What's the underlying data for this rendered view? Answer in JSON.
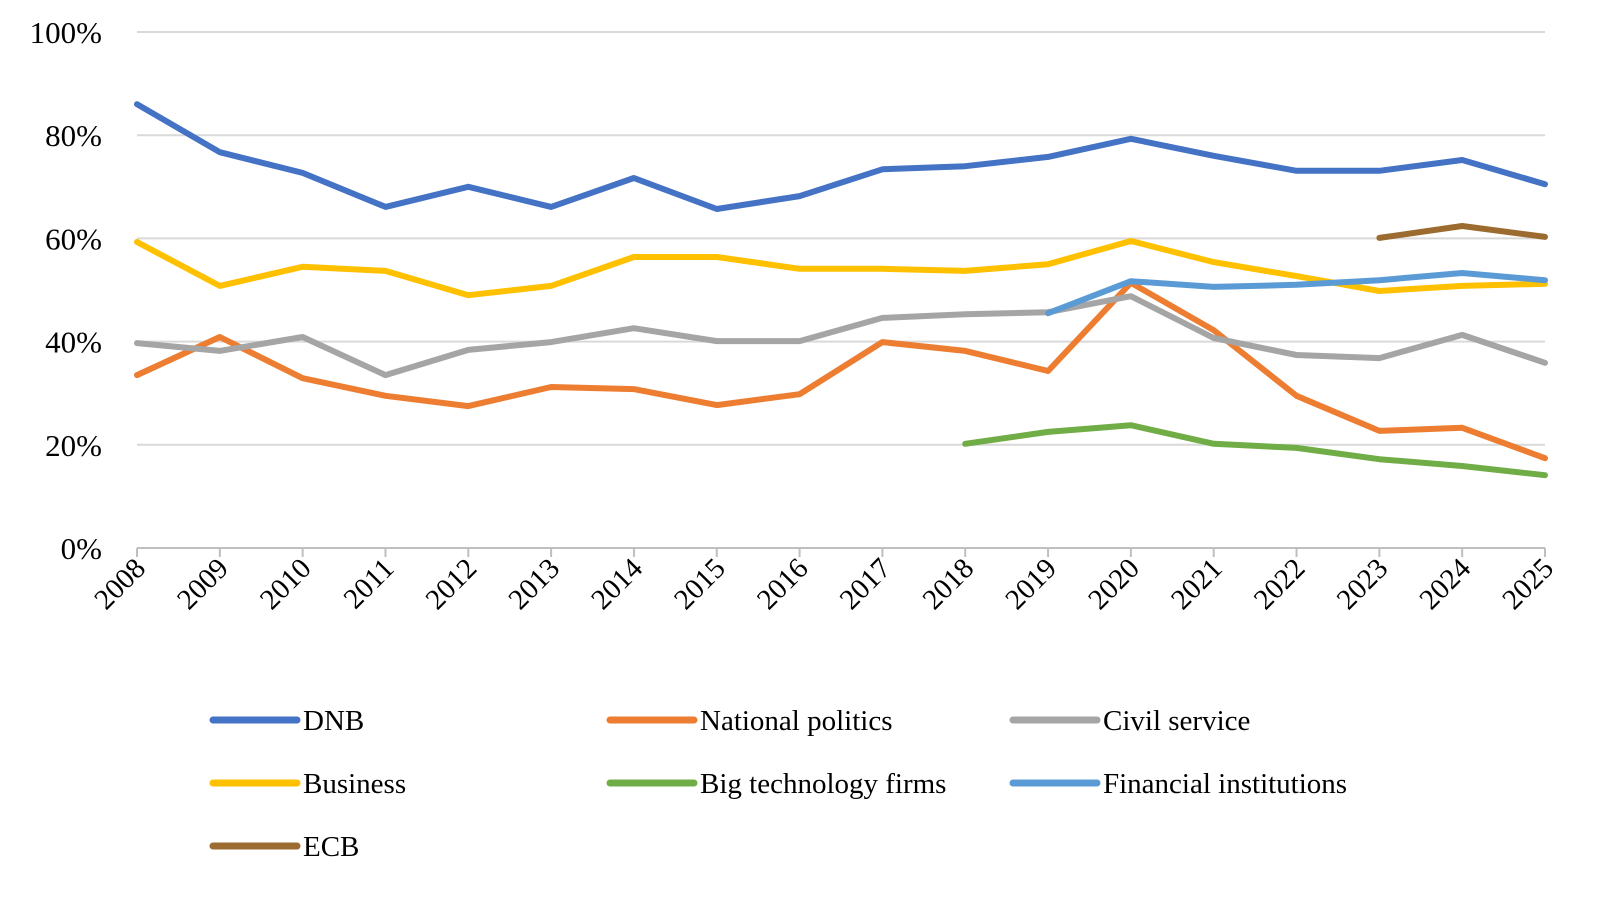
{
  "chart_data": {
    "type": "line",
    "title": "",
    "xlabel": "",
    "ylabel": "",
    "ylim": [
      0,
      100
    ],
    "y_ticks": [
      "0%",
      "20%",
      "40%",
      "60%",
      "80%",
      "100%"
    ],
    "y_tick_values": [
      0,
      20,
      40,
      60,
      80,
      100
    ],
    "grid": "horizontal",
    "legend_position": "bottom",
    "categories": [
      "2008",
      "2009",
      "2010",
      "2011",
      "2012",
      "2013",
      "2014",
      "2015",
      "2016",
      "2017",
      "2018",
      "2019",
      "2020",
      "2021",
      "2022",
      "2023",
      "2024",
      "2025"
    ],
    "series": [
      {
        "name": "DNB",
        "color": "#4472C4",
        "values": [
          86.0,
          76.7,
          72.7,
          66.1,
          70.0,
          66.1,
          71.7,
          65.7,
          68.2,
          73.4,
          74.0,
          75.8,
          79.3,
          76.0,
          73.1,
          73.1,
          75.2,
          70.5
        ]
      },
      {
        "name": "National politics",
        "color": "#ED7D31",
        "values": [
          33.5,
          40.9,
          32.9,
          29.5,
          27.5,
          31.2,
          30.8,
          27.7,
          29.8,
          39.9,
          38.2,
          34.3,
          51.4,
          42.2,
          29.5,
          22.7,
          23.3,
          17.4
        ]
      },
      {
        "name": "Civil service",
        "color": "#A5A5A5",
        "values": [
          39.7,
          38.2,
          40.9,
          33.5,
          38.4,
          39.9,
          42.6,
          40.1,
          40.1,
          44.6,
          45.3,
          45.7,
          48.8,
          40.7,
          37.4,
          36.8,
          41.3,
          35.9
        ]
      },
      {
        "name": "Business",
        "color": "#FFC000",
        "values": [
          59.3,
          50.8,
          54.5,
          53.7,
          49.0,
          50.8,
          56.4,
          56.4,
          54.1,
          54.1,
          53.7,
          55.0,
          59.5,
          55.4,
          52.7,
          49.8,
          50.8,
          51.2
        ]
      },
      {
        "name": "Big technology firms",
        "color": "#70AD47",
        "values": [
          null,
          null,
          null,
          null,
          null,
          null,
          null,
          null,
          null,
          null,
          20.2,
          22.5,
          23.8,
          20.2,
          19.4,
          17.2,
          15.9,
          14.1
        ]
      },
      {
        "name": "Financial institutions",
        "color": "#5B9BD5",
        "values": [
          null,
          null,
          null,
          null,
          null,
          null,
          null,
          null,
          null,
          null,
          null,
          45.5,
          51.7,
          50.6,
          51.0,
          51.9,
          53.3,
          51.9
        ]
      },
      {
        "name": "ECB",
        "color": "#9C6B30",
        "values": [
          null,
          null,
          null,
          null,
          null,
          null,
          null,
          null,
          null,
          null,
          null,
          null,
          null,
          null,
          null,
          60.1,
          62.4,
          60.3
        ]
      }
    ]
  }
}
